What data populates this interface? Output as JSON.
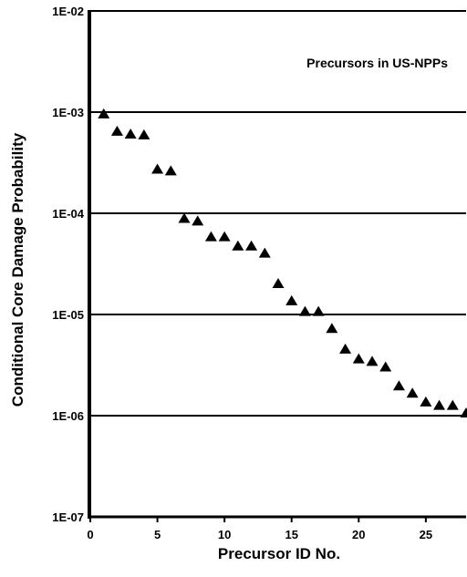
{
  "chart_data": {
    "type": "scatter",
    "title": "",
    "annotation": "Precursors in US-NPPs",
    "xlabel": "Precursor ID No.",
    "ylabel": "Conditional Core Damage Probability",
    "yscale": "log",
    "xlim": [
      0,
      28
    ],
    "ylim": [
      1e-07,
      0.01
    ],
    "x_ticks": [
      0,
      5,
      10,
      15,
      20,
      25
    ],
    "x_tick_labels": [
      "0",
      "5",
      "10",
      "15",
      "20",
      "25"
    ],
    "y_ticks": [
      1e-07,
      1e-06,
      1e-05,
      0.0001,
      0.001,
      0.01
    ],
    "y_tick_labels": [
      "1E-07",
      "1E-06",
      "1E-05",
      "1E-04",
      "1E-03",
      "1E-02"
    ],
    "grid": "horizontal lines at decades",
    "marker": "triangle",
    "marker_color": "#000000",
    "series": [
      {
        "x": [
          1,
          2,
          3,
          4,
          5,
          6,
          7,
          8,
          9,
          10,
          11,
          12,
          13,
          14,
          15,
          16,
          17,
          18,
          19,
          20,
          21,
          22,
          23,
          24,
          25,
          26,
          27,
          28
        ],
        "y": [
          0.00095,
          0.00064,
          0.0006,
          0.00059,
          0.00027,
          0.00026,
          8.8e-05,
          8.3e-05,
          5.8e-05,
          5.8e-05,
          4.7e-05,
          4.7e-05,
          4e-05,
          2e-05,
          1.35e-05,
          1.06e-05,
          1.06e-05,
          7.2e-06,
          4.5e-06,
          3.6e-06,
          3.4e-06,
          3e-06,
          1.95e-06,
          1.65e-06,
          1.35e-06,
          1.25e-06,
          1.25e-06,
          1.05e-06
        ]
      }
    ]
  }
}
